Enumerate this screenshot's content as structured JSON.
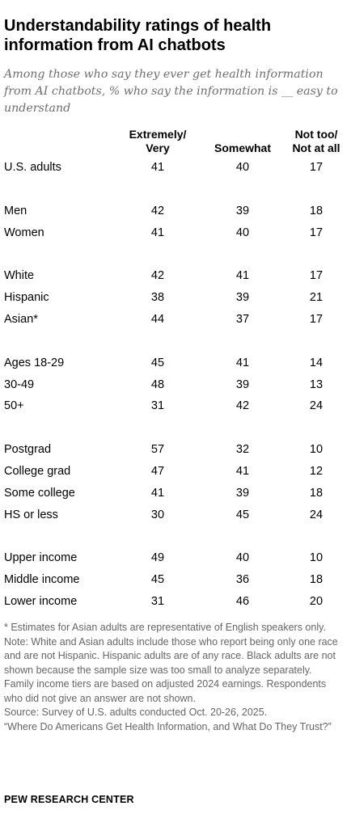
{
  "title": "Understandability ratings of health information from AI chatbots",
  "subtitle": "Among those who say they ever get health information from AI chatbots, % who say the information is __ easy to understand",
  "chart_data": {
    "type": "table",
    "columns": [
      "Extremely/\nVery",
      "Somewhat",
      "Not too/\nNot at all"
    ],
    "rows": [
      {
        "label": "U.S. adults",
        "values": [
          41,
          40,
          17
        ]
      },
      {
        "label": "Men",
        "values": [
          42,
          39,
          18
        ]
      },
      {
        "label": "Women",
        "values": [
          41,
          40,
          17
        ]
      },
      {
        "label": "White",
        "values": [
          42,
          41,
          17
        ]
      },
      {
        "label": "Hispanic",
        "values": [
          38,
          39,
          21
        ]
      },
      {
        "label": "Asian*",
        "values": [
          44,
          37,
          17
        ]
      },
      {
        "label": "Ages 18-29",
        "values": [
          45,
          41,
          14
        ]
      },
      {
        "label": "30-49",
        "values": [
          48,
          39,
          13
        ]
      },
      {
        "label": "50+",
        "values": [
          31,
          42,
          24
        ]
      },
      {
        "label": "Postgrad",
        "values": [
          57,
          32,
          10
        ]
      },
      {
        "label": "College grad",
        "values": [
          47,
          41,
          12
        ]
      },
      {
        "label": "Some college",
        "values": [
          41,
          39,
          18
        ]
      },
      {
        "label": "HS or less",
        "values": [
          30,
          45,
          24
        ]
      },
      {
        "label": "Upper income",
        "values": [
          49,
          40,
          10
        ]
      },
      {
        "label": "Middle income",
        "values": [
          45,
          36,
          18
        ]
      },
      {
        "label": "Lower income",
        "values": [
          31,
          46,
          20
        ]
      }
    ]
  },
  "notes": {
    "footnote": "* Estimates for Asian adults are representative of English speakers only.",
    "note": "Note: White and Asian adults include those who report being only one race and are not Hispanic. Hispanic adults are of any race. Black adults are not shown because the sample size was too small to analyze separately. Family income tiers are based on adjusted 2024 earnings. Respondents who did not give an answer are not shown.",
    "source": "Source: Survey of U.S. adults conducted Oct. 20-26, 2025.",
    "report": "“Where Do Americans Get Health Information, and What Do They Trust?”"
  },
  "brand": "PEW RESEARCH CENTER"
}
